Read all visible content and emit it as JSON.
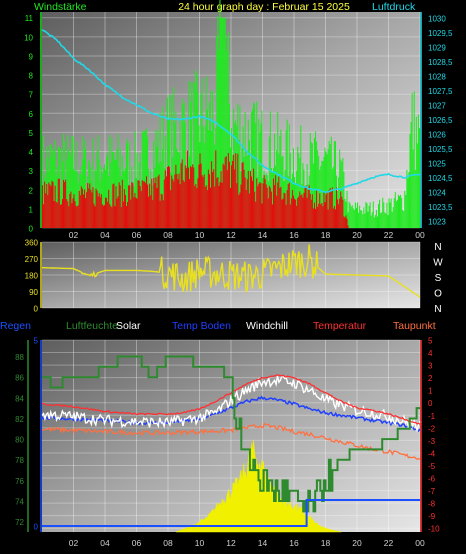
{
  "header": {
    "left": "Windstärke",
    "title": "24 hour graph day : Februar 15 2025",
    "right": "Luftdruck"
  },
  "colors": {
    "wind_gust": "#22e822",
    "wind_avg": "#e01010",
    "pressure": "#20d8e8",
    "direction": "#e8e020",
    "regen": "#1a50ff",
    "luftfeuchte": "#2e8a2e",
    "solar": "#f0f000",
    "temp_boden": "#2040ff",
    "windchill": "#ffffff",
    "temperatur": "#ff3030",
    "taupunkt": "#ff7040"
  },
  "chart_data": [
    {
      "type": "bar",
      "panel": "wind",
      "x_tick_labels": [
        "02",
        "04",
        "06",
        "08",
        "10",
        "12",
        "14",
        "16",
        "18",
        "20",
        "22",
        "00"
      ],
      "x_range": [
        0,
        24
      ],
      "y_left": {
        "ticks": [
          "0",
          "1",
          "2",
          "3",
          "4",
          "5",
          "6",
          "7",
          "8",
          "9",
          "10",
          "11"
        ],
        "ylim": [
          0,
          11.3
        ]
      },
      "y_right": {
        "ticks": [
          "1023",
          "1023,5",
          "1024",
          "1024,5",
          "1025",
          "1025,5",
          "1026",
          "1026,5",
          "1027",
          "1027,5",
          "1028",
          "1028,5",
          "1029",
          "1029,5",
          "1030"
        ],
        "ylim": [
          1022.75,
          1030.2
        ]
      },
      "series": [
        {
          "name": "Windstärke",
          "role": "gust",
          "axis": "left",
          "x": [
            0,
            1,
            2,
            3,
            4,
            5,
            6,
            7,
            8,
            9,
            10,
            11,
            11.5,
            12,
            13,
            14,
            15,
            16,
            17,
            18,
            19,
            19.5,
            20,
            21,
            22,
            23,
            23.5,
            24
          ],
          "values": [
            3.5,
            3.6,
            3.5,
            3.4,
            3.6,
            3.5,
            3.5,
            4.0,
            5.0,
            5.5,
            5.8,
            6.0,
            11.0,
            5.5,
            5.0,
            4.5,
            4.2,
            3.8,
            3.6,
            3.5,
            3.0,
            1.0,
            1.0,
            1.0,
            1.2,
            1.5,
            5.5,
            4.5
          ]
        },
        {
          "name": "",
          "role": "average",
          "axis": "left",
          "x": [
            0,
            1,
            2,
            3,
            4,
            5,
            6,
            7,
            8,
            9,
            10,
            11,
            12,
            13,
            14,
            15,
            16,
            17,
            18,
            19,
            19.5,
            24
          ],
          "values": [
            1.8,
            1.9,
            1.8,
            1.7,
            1.8,
            1.8,
            1.9,
            2.0,
            2.5,
            3.0,
            3.0,
            3.2,
            3.0,
            2.5,
            2.0,
            2.0,
            1.8,
            1.6,
            1.6,
            1.5,
            0,
            0
          ]
        },
        {
          "name": "Luftdruck",
          "role": "pressure",
          "axis": "right",
          "type": "line",
          "x": [
            0,
            1,
            2,
            3,
            4,
            5,
            6,
            7,
            8,
            9,
            10,
            11,
            12,
            13,
            14,
            15,
            16,
            17,
            18,
            19,
            20,
            21,
            22,
            23,
            24
          ],
          "values": [
            1029.6,
            1029.2,
            1028.6,
            1028.2,
            1027.7,
            1027.3,
            1027.0,
            1026.7,
            1026.5,
            1026.5,
            1026.6,
            1026.4,
            1026.0,
            1025.4,
            1024.9,
            1024.6,
            1024.3,
            1024.1,
            1024.0,
            1024.1,
            1024.3,
            1024.5,
            1024.6,
            1024.5,
            1024.6
          ]
        }
      ]
    },
    {
      "type": "line",
      "panel": "wind-direction",
      "x_range": [
        0,
        24
      ],
      "y_left": {
        "ticks": [
          "0",
          "90",
          "180",
          "270",
          "360"
        ],
        "ylim": [
          0,
          360
        ]
      },
      "y_right": {
        "ticks": [
          "N",
          "W",
          "S",
          "O",
          "N"
        ]
      },
      "series": [
        {
          "name": "",
          "role": "direction",
          "x": [
            0,
            2,
            3,
            4,
            5,
            6,
            7,
            8,
            9,
            10,
            11,
            12,
            13,
            14,
            15,
            16,
            17,
            18,
            20,
            22,
            24
          ],
          "values": [
            220,
            215,
            175,
            205,
            205,
            205,
            200,
            190,
            160,
            200,
            190,
            180,
            170,
            185,
            215,
            250,
            260,
            185,
            180,
            175,
            60
          ]
        }
      ]
    },
    {
      "type": "line",
      "panel": "climate",
      "legend": [
        "Regen",
        "Luftfeuchte",
        "Solar",
        "Temp Boden",
        "Windchill",
        "Temperatur",
        "Taupunkt"
      ],
      "x_tick_labels": [
        "02",
        "04",
        "06",
        "08",
        "10",
        "12",
        "14",
        "16",
        "18",
        "20",
        "22",
        "00"
      ],
      "x_range": [
        0,
        24
      ],
      "y_left_humidity": {
        "ticks": [
          "72",
          "74",
          "76",
          "78",
          "80",
          "82",
          "84",
          "86",
          "88"
        ],
        "ylim": [
          71,
          89.6
        ]
      },
      "y_left_rain": {
        "ticks": [
          "0",
          "5"
        ],
        "ylim": [
          0,
          5
        ]
      },
      "y_right": {
        "ticks": [
          "5",
          "4",
          "3",
          "2",
          "1",
          "0",
          "-1",
          "-2",
          "-3",
          "-4",
          "-5",
          "-6",
          "-7",
          "-8",
          "-9",
          "-10"
        ],
        "ylim": [
          -10.3,
          5
        ]
      },
      "series": [
        {
          "name": "Luftfeuchte",
          "axis": "humidity",
          "x": [
            0,
            1,
            1.5,
            3,
            4,
            4.5,
            5,
            6,
            6.5,
            7,
            8,
            9,
            10,
            11,
            12,
            12.2,
            13,
            14,
            15,
            16,
            17,
            18,
            19,
            20,
            21,
            22,
            23,
            24
          ],
          "values": [
            86,
            85,
            86,
            86,
            87,
            87,
            88,
            88,
            87,
            86,
            88,
            88,
            87,
            87,
            86,
            82,
            78,
            76,
            75,
            74,
            73,
            76,
            78,
            79,
            79,
            80,
            81,
            83
          ]
        },
        {
          "name": "Temperatur",
          "axis": "right",
          "x": [
            0,
            2,
            4,
            6,
            8,
            9,
            10,
            11,
            12,
            13,
            14,
            15,
            16,
            17,
            18,
            19,
            20,
            21,
            22,
            23,
            24
          ],
          "values": [
            -0.1,
            -0.3,
            -0.7,
            -0.9,
            -0.9,
            -0.8,
            -0.5,
            0.1,
            0.8,
            1.5,
            2.0,
            2.2,
            2.0,
            1.5,
            0.8,
            0.1,
            -0.4,
            -0.6,
            -0.9,
            -1.3,
            -1.7
          ]
        },
        {
          "name": "Windchill",
          "axis": "right",
          "x": [
            0,
            2,
            4,
            6,
            8,
            9,
            10,
            11,
            12,
            13,
            14,
            15,
            16,
            17,
            18,
            19,
            20,
            21,
            22,
            23,
            24
          ],
          "values": [
            -0.9,
            -1.1,
            -1.4,
            -1.5,
            -1.6,
            -1.4,
            -1.2,
            -0.8,
            0.2,
            1.0,
            1.7,
            1.8,
            1.6,
            1.0,
            0.2,
            -0.2,
            -0.6,
            -0.8,
            -1.1,
            -1.5,
            -1.9
          ]
        },
        {
          "name": "Temp Boden",
          "axis": "right",
          "x": [
            0,
            2,
            4,
            6,
            8,
            10,
            11,
            12,
            13,
            14,
            15,
            16,
            17,
            18,
            19,
            20,
            21,
            22,
            23,
            24
          ],
          "values": [
            -1.2,
            -1.3,
            -1.4,
            -1.6,
            -1.6,
            -1.3,
            -0.9,
            -0.4,
            0.1,
            0.4,
            0.2,
            -0.1,
            -0.5,
            -0.8,
            -1.0,
            -1.2,
            -1.4,
            -1.6,
            -1.8,
            -2.2
          ]
        },
        {
          "name": "Taupunkt",
          "axis": "right",
          "x": [
            0,
            2,
            4,
            6,
            8,
            10,
            12,
            13,
            14,
            15,
            16,
            17,
            18,
            19,
            20,
            21,
            22,
            23,
            24
          ],
          "values": [
            -2.1,
            -2.2,
            -2.3,
            -2.4,
            -2.4,
            -2.3,
            -2.2,
            -2.0,
            -1.8,
            -2.0,
            -2.3,
            -2.5,
            -2.8,
            -3.1,
            -3.4,
            -3.7,
            -3.9,
            -4.2,
            -4.4
          ]
        },
        {
          "name": "Regen",
          "axis": "rain",
          "x": [
            0,
            16.8,
            16.8,
            24
          ],
          "values": [
            0,
            0,
            0.7,
            0.7
          ]
        },
        {
          "name": "Solar",
          "axis": "area",
          "x": [
            8.5,
            9.5,
            10.5,
            11,
            11.5,
            12,
            12.5,
            13,
            13.3,
            13.8,
            14.2,
            14.5,
            15,
            15.5,
            16,
            16.5,
            17,
            17.5,
            18,
            19
          ],
          "values": [
            0,
            0.05,
            0.12,
            0.2,
            0.28,
            0.35,
            0.42,
            0.55,
            0.7,
            0.6,
            0.5,
            0.42,
            0.3,
            0.25,
            0.22,
            0.18,
            0.12,
            0.06,
            0.03,
            0
          ]
        }
      ]
    }
  ]
}
